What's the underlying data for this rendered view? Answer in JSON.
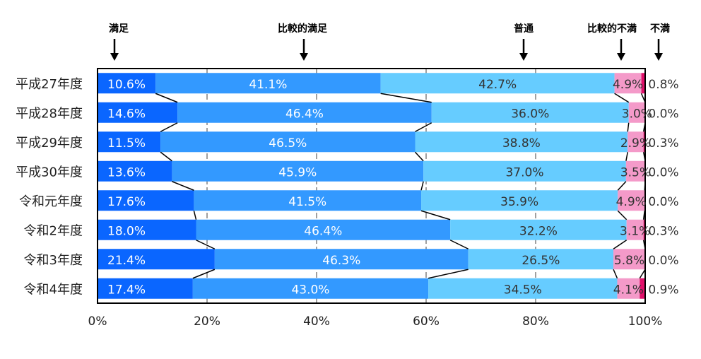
{
  "chart_data": {
    "type": "bar",
    "orientation": "horizontal",
    "stacked": "percent",
    "categories": [
      "平成27年度",
      "平成28年度",
      "平成29年度",
      "平成30年度",
      "令和元年度",
      "令和2年度",
      "令和3年度",
      "令和4年度"
    ],
    "series": [
      {
        "name": "満足",
        "color": "#0a66ff",
        "label_color": "#ffffff",
        "values": [
          10.6,
          14.6,
          11.5,
          13.6,
          17.6,
          18.0,
          21.4,
          17.4
        ]
      },
      {
        "name": "比較的満足",
        "color": "#3399ff",
        "label_color": "#ffffff",
        "values": [
          41.1,
          46.4,
          46.5,
          45.9,
          41.5,
          46.4,
          46.3,
          43.0
        ]
      },
      {
        "name": "普通",
        "color": "#66ccff",
        "label_color": "#333333",
        "values": [
          42.7,
          36.0,
          38.8,
          37.0,
          35.9,
          32.2,
          26.5,
          34.5
        ]
      },
      {
        "name": "比較的不満",
        "color": "#f49ac9",
        "label_color": "#333333",
        "values": [
          4.9,
          3.0,
          2.9,
          3.5,
          4.9,
          3.1,
          5.8,
          4.1
        ]
      },
      {
        "name": "不満",
        "color": "#e0106a",
        "label_color": "#333333",
        "values": [
          0.8,
          0.0,
          0.3,
          0.0,
          0.0,
          0.3,
          0.0,
          0.9
        ]
      }
    ],
    "value_labels": {
      "0": [
        "10.6%",
        "14.6%",
        "11.5%",
        "13.6%",
        "17.6%",
        "18.0%",
        "21.4%",
        "17.4%"
      ],
      "1": [
        "41.1%",
        "46.4%",
        "46.5%",
        "45.9%",
        "41.5%",
        "46.4%",
        "46.3%",
        "43.0%"
      ],
      "2": [
        "42.7%",
        "36.0%",
        "38.8%",
        "37.0%",
        "35.9%",
        "32.2%",
        "26.5%",
        "34.5%"
      ],
      "3": [
        "4.9%",
        "3.0%",
        "2.9%",
        "3.5%",
        "4.9%",
        "3.1%",
        "5.8%",
        "4.1%"
      ],
      "4": [
        "0.8%",
        "0.0%",
        "0.3%",
        "0.0%",
        "0.0%",
        "0.3%",
        "0.0%",
        "0.9%"
      ]
    },
    "xlim": [
      0,
      100
    ],
    "x_ticks": [
      "0%",
      "20%",
      "40%",
      "60%",
      "80%",
      "100%"
    ],
    "grid": "dashed vertical",
    "legend_placement": "top, labels with arrows pointing down",
    "series_lines": true
  }
}
